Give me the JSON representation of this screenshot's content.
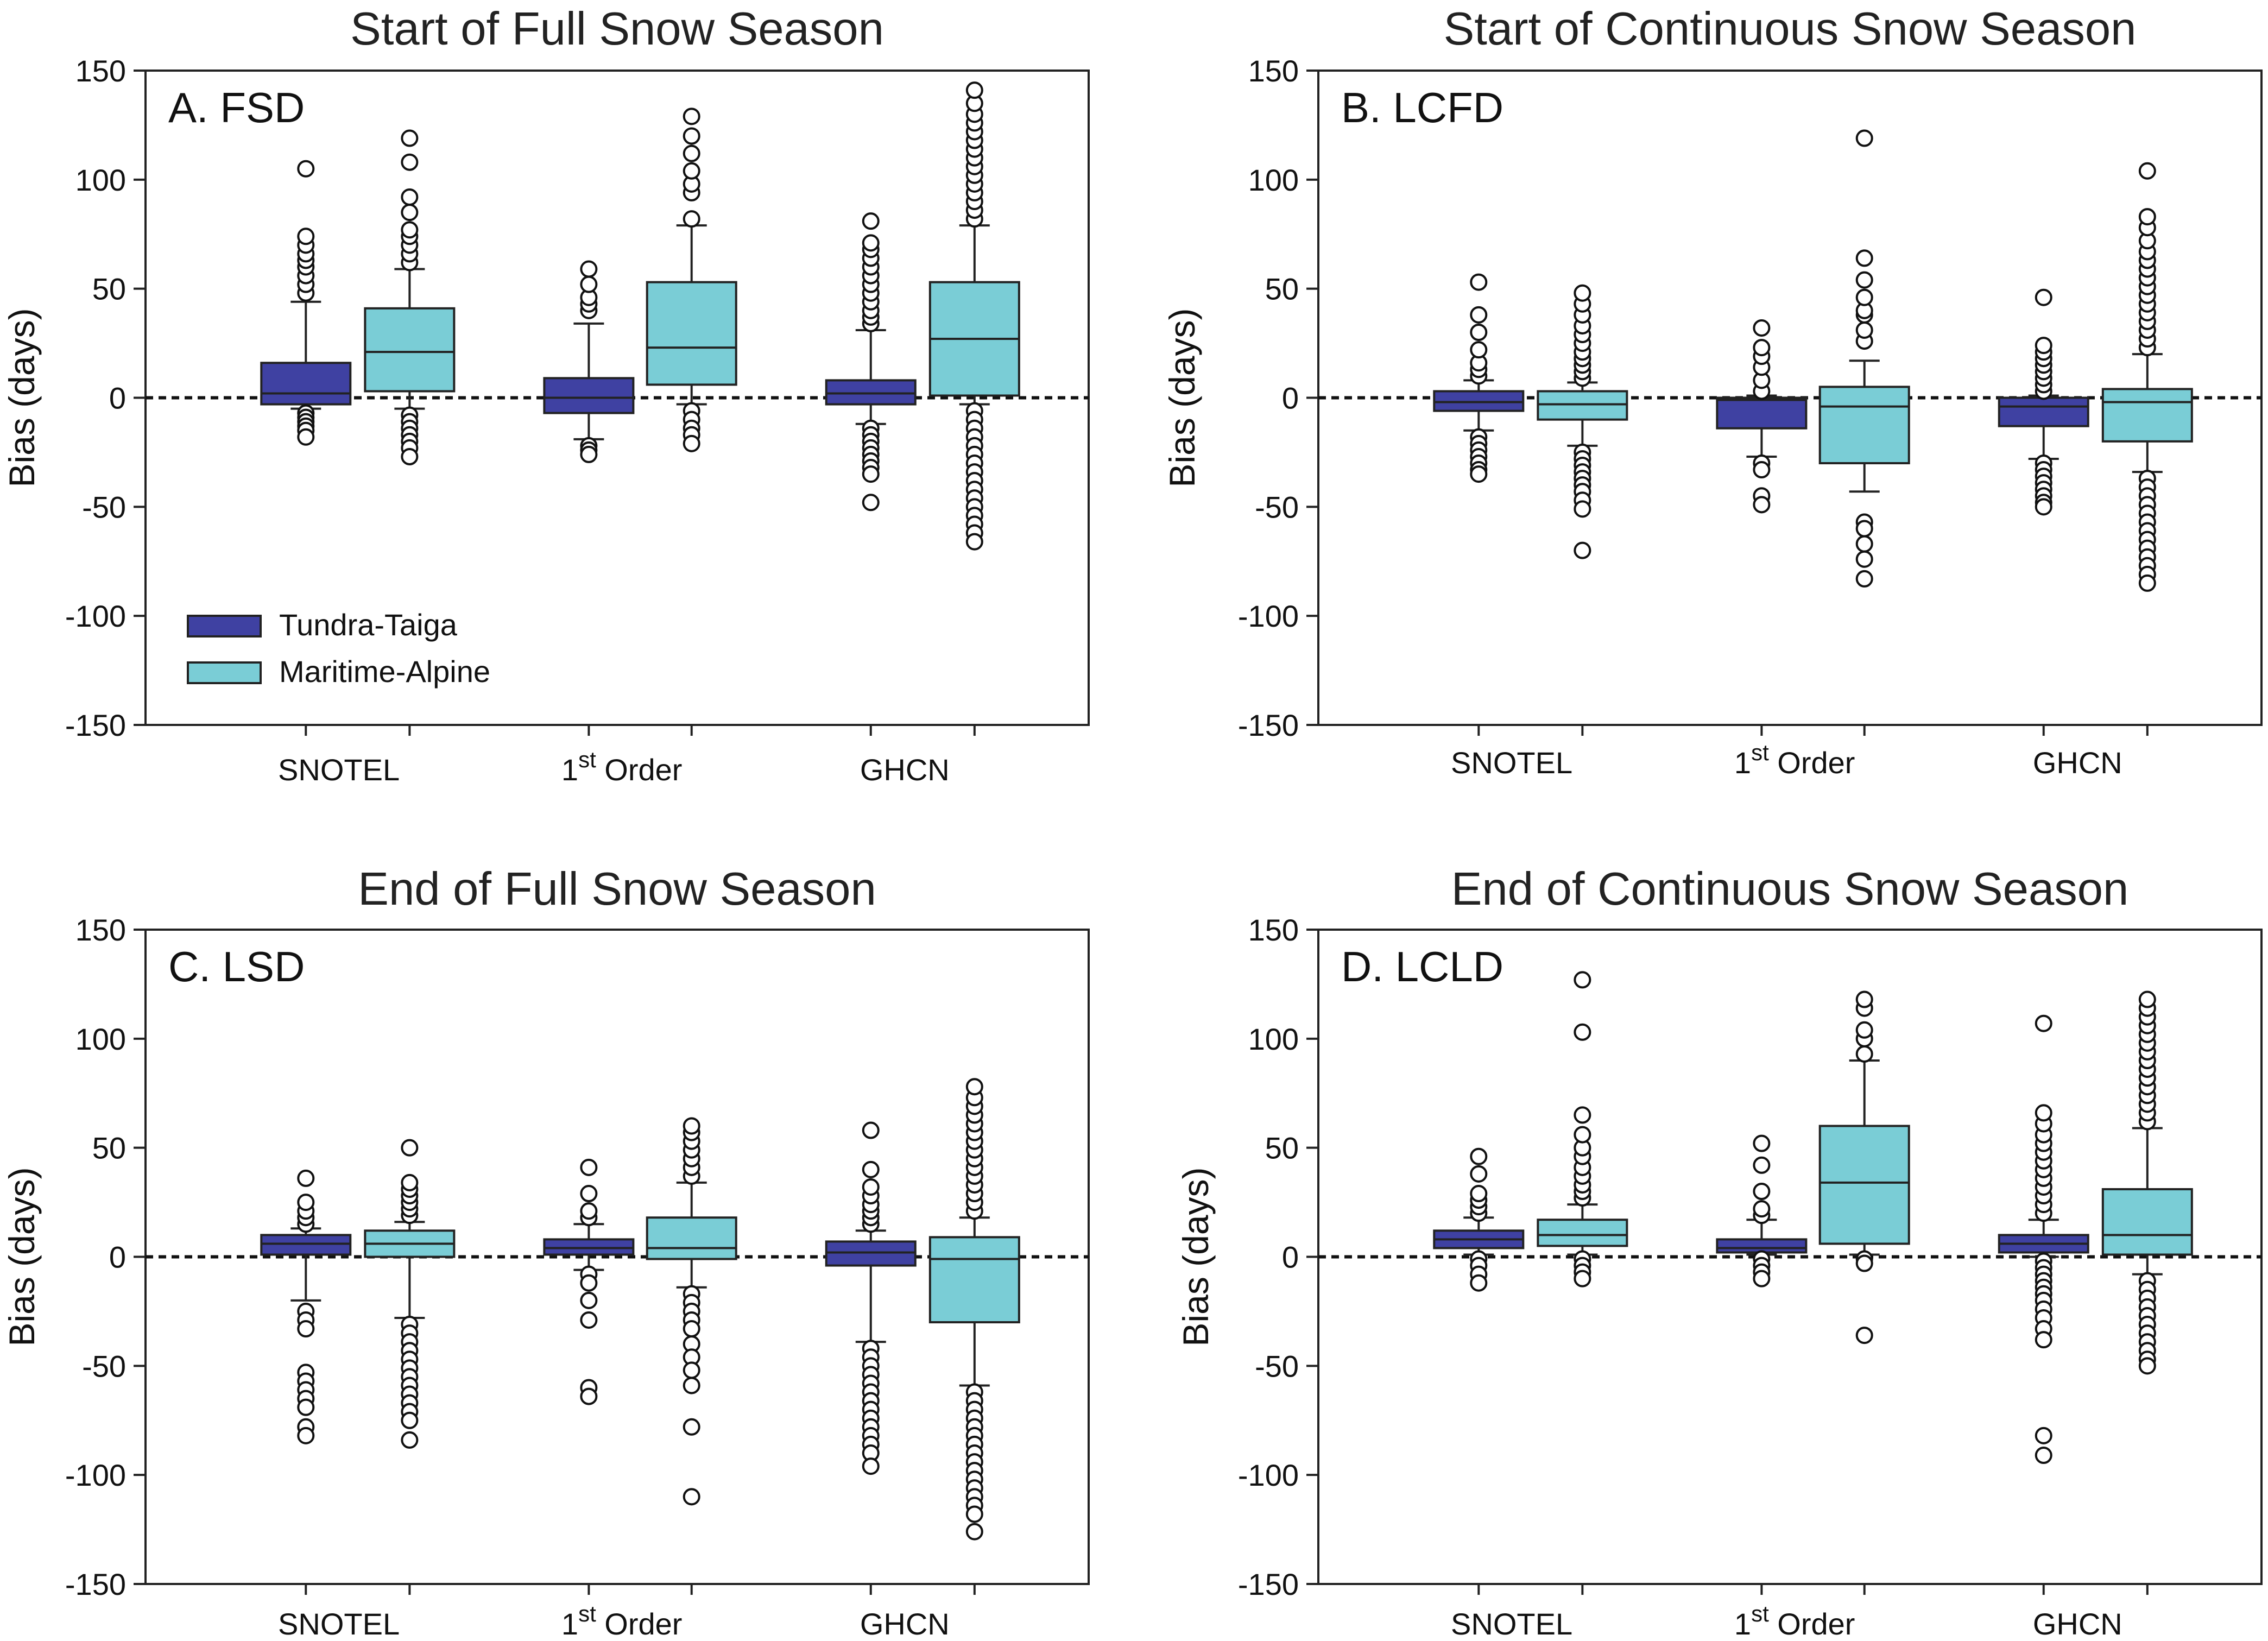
{
  "colors": {
    "tundra_taiga": "#3F41A2",
    "maritime_alpine": "#7ACDD6",
    "outline": "#222222"
  },
  "legend": {
    "tundra": "Tundra-Taiga",
    "maritime": "Maritime-Alpine"
  },
  "chart_data": [
    {
      "type": "box",
      "title": "Start of Full Snow Season",
      "panel_label": "A. FSD",
      "ylabel": "Bias (days)",
      "ylim": [
        -150,
        150
      ],
      "yticks": [
        150,
        100,
        50,
        0,
        -50,
        -100,
        -150
      ],
      "categories": [
        {
          "base": "SNOTEL",
          "sup": "",
          "rest": ""
        },
        {
          "base": "1",
          "sup": "st",
          "rest": " Order"
        },
        {
          "base": "GHCN",
          "sup": "",
          "rest": ""
        }
      ],
      "series": [
        {
          "name": "Tundra-Taiga",
          "boxes": [
            {
              "q1": -3,
              "median": 2,
              "q3": 16,
              "whisker_low": -5,
              "whisker_high": 44,
              "outliers_low": [
                -7,
                -9,
                -11,
                -13,
                -15,
                -18
              ],
              "outliers_high": [
                48,
                52,
                56,
                60,
                63,
                66,
                70,
                74,
                105
              ]
            },
            {
              "q1": -7,
              "median": 0,
              "q3": 9,
              "whisker_low": -19,
              "whisker_high": 34,
              "outliers_low": [
                -22,
                -24,
                -26
              ],
              "outliers_high": [
                40,
                43,
                46,
                52,
                59
              ]
            },
            {
              "q1": -3,
              "median": 2,
              "q3": 8,
              "whisker_low": -12,
              "whisker_high": 31,
              "outliers_low": [
                -14,
                -17,
                -20,
                -23,
                -26,
                -29,
                -32,
                -35,
                -48
              ],
              "outliers_high": [
                34,
                37,
                40,
                44,
                48,
                52,
                56,
                60,
                64,
                68,
                71,
                81
              ]
            }
          ]
        },
        {
          "name": "Maritime-Alpine",
          "boxes": [
            {
              "q1": 3,
              "median": 21,
              "q3": 41,
              "whisker_low": -5,
              "whisker_high": 59,
              "outliers_low": [
                -8,
                -11,
                -14,
                -17,
                -20,
                -23,
                -27
              ],
              "outliers_high": [
                62,
                66,
                70,
                74,
                77,
                85,
                92,
                108,
                119
              ]
            },
            {
              "q1": 6,
              "median": 23,
              "q3": 53,
              "whisker_low": -3,
              "whisker_high": 79,
              "outliers_low": [
                -6,
                -10,
                -14,
                -17,
                -21
              ],
              "outliers_high": [
                82,
                94,
                98,
                104,
                112,
                120,
                129
              ]
            },
            {
              "q1": 1,
              "median": 27,
              "q3": 53,
              "whisker_low": -3,
              "whisker_high": 79,
              "outliers_low": [
                -6,
                -10,
                -14,
                -18,
                -22,
                -26,
                -30,
                -34,
                -38,
                -42,
                -46,
                -50,
                -54,
                -58,
                -62,
                -66
              ],
              "outliers_high": [
                82,
                86,
                90,
                94,
                98,
                102,
                106,
                110,
                114,
                118,
                122,
                126,
                130,
                135,
                141
              ]
            }
          ]
        }
      ],
      "show_legend": true
    },
    {
      "type": "box",
      "title": "Start of Continuous Snow Season",
      "panel_label": "B. LCFD",
      "ylabel": "Bias (days)",
      "ylim": [
        -150,
        150
      ],
      "yticks": [
        150,
        100,
        50,
        0,
        -50,
        -100,
        -150
      ],
      "categories": [
        {
          "base": "SNOTEL",
          "sup": "",
          "rest": ""
        },
        {
          "base": "1",
          "sup": "st",
          "rest": " Order"
        },
        {
          "base": "GHCN",
          "sup": "",
          "rest": ""
        }
      ],
      "series": [
        {
          "name": "Tundra-Taiga",
          "boxes": [
            {
              "q1": -6,
              "median": -2,
              "q3": 3,
              "whisker_low": -15,
              "whisker_high": 8,
              "outliers_low": [
                -18,
                -21,
                -24,
                -27,
                -30,
                -33,
                -35
              ],
              "outliers_high": [
                10,
                13,
                16,
                22,
                30,
                38,
                53
              ]
            },
            {
              "q1": -14,
              "median": -1,
              "q3": 0,
              "whisker_low": -27,
              "whisker_high": 1,
              "outliers_low": [
                -30,
                -33,
                -45,
                -49
              ],
              "outliers_high": [
                3,
                8,
                14,
                19,
                23,
                32
              ]
            },
            {
              "q1": -13,
              "median": -4,
              "q3": 0,
              "whisker_low": -28,
              "whisker_high": 1,
              "outliers_low": [
                -30,
                -33,
                -36,
                -39,
                -42,
                -45,
                -48,
                -50
              ],
              "outliers_high": [
                3,
                6,
                9,
                12,
                15,
                18,
                21,
                24,
                46
              ]
            }
          ]
        },
        {
          "name": "Maritime-Alpine",
          "boxes": [
            {
              "q1": -10,
              "median": -3,
              "q3": 3,
              "whisker_low": -22,
              "whisker_high": 7,
              "outliers_low": [
                -25,
                -28,
                -31,
                -34,
                -37,
                -40,
                -43,
                -47,
                -51,
                -70
              ],
              "outliers_high": [
                9,
                12,
                15,
                18,
                21,
                25,
                29,
                33,
                38,
                43,
                48
              ]
            },
            {
              "q1": -30,
              "median": -4,
              "q3": 5,
              "whisker_low": -43,
              "whisker_high": 17,
              "outliers_low": [
                -57,
                -60,
                -67,
                -74,
                -83
              ],
              "outliers_high": [
                26,
                31,
                38,
                40,
                46,
                54,
                64,
                119
              ]
            },
            {
              "q1": -20,
              "median": -2,
              "q3": 4,
              "whisker_low": -34,
              "whisker_high": 20,
              "outliers_low": [
                -37,
                -41,
                -45,
                -49,
                -53,
                -57,
                -61,
                -65,
                -69,
                -73,
                -77,
                -81,
                -85
              ],
              "outliers_high": [
                23,
                27,
                31,
                35,
                39,
                43,
                47,
                51,
                55,
                59,
                63,
                67,
                72,
                78,
                83,
                104
              ]
            }
          ]
        }
      ],
      "show_legend": false
    },
    {
      "type": "box",
      "title": "End of Full Snow Season",
      "panel_label": "C. LSD",
      "ylabel": "Bias (days)",
      "ylim": [
        -150,
        150
      ],
      "yticks": [
        150,
        100,
        50,
        0,
        -50,
        -100,
        -150
      ],
      "categories": [
        {
          "base": "SNOTEL",
          "sup": "",
          "rest": ""
        },
        {
          "base": "1",
          "sup": "st",
          "rest": " Order"
        },
        {
          "base": "GHCN",
          "sup": "",
          "rest": ""
        }
      ],
      "series": [
        {
          "name": "Tundra-Taiga",
          "boxes": [
            {
              "q1": 1,
              "median": 6,
              "q3": 10,
              "whisker_low": -20,
              "whisker_high": 13,
              "outliers_low": [
                -25,
                -29,
                -33,
                -53,
                -57,
                -61,
                -65,
                -69,
                -78,
                -82
              ],
              "outliers_high": [
                15,
                18,
                21,
                25,
                36
              ]
            },
            {
              "q1": 1,
              "median": 4,
              "q3": 8,
              "whisker_low": -6,
              "whisker_high": 15,
              "outliers_low": [
                -8,
                -12,
                -20,
                -29,
                -60,
                -64
              ],
              "outliers_high": [
                18,
                21,
                29,
                41
              ]
            },
            {
              "q1": -4,
              "median": 2,
              "q3": 7,
              "whisker_low": -39,
              "whisker_high": 12,
              "outliers_low": [
                -42,
                -46,
                -50,
                -54,
                -58,
                -62,
                -66,
                -70,
                -74,
                -78,
                -82,
                -86,
                -90,
                -96
              ],
              "outliers_high": [
                15,
                18,
                21,
                24,
                28,
                32,
                40,
                58
              ]
            }
          ]
        },
        {
          "name": "Maritime-Alpine",
          "boxes": [
            {
              "q1": 0,
              "median": 6,
              "q3": 12,
              "whisker_low": -28,
              "whisker_high": 16,
              "outliers_low": [
                -31,
                -35,
                -39,
                -43,
                -47,
                -51,
                -55,
                -59,
                -63,
                -67,
                -71,
                -75,
                -84
              ],
              "outliers_high": [
                19,
                22,
                25,
                28,
                31,
                34,
                50
              ]
            },
            {
              "q1": -1,
              "median": 4,
              "q3": 18,
              "whisker_low": -14,
              "whisker_high": 34,
              "outliers_low": [
                -17,
                -21,
                -25,
                -29,
                -33,
                -40,
                -46,
                -52,
                -59,
                -78,
                -110
              ],
              "outliers_high": [
                37,
                41,
                45,
                49,
                53,
                57,
                60
              ]
            },
            {
              "q1": -30,
              "median": -1,
              "q3": 9,
              "whisker_low": -59,
              "whisker_high": 18,
              "outliers_low": [
                -62,
                -66,
                -70,
                -74,
                -78,
                -82,
                -86,
                -90,
                -94,
                -98,
                -102,
                -106,
                -110,
                -114,
                -118,
                -126
              ],
              "outliers_high": [
                21,
                25,
                29,
                33,
                37,
                41,
                45,
                49,
                53,
                57,
                61,
                65,
                69,
                73,
                78
              ]
            }
          ]
        }
      ],
      "show_legend": false
    },
    {
      "type": "box",
      "title": "End of Continuous Snow Season",
      "panel_label": "D. LCLD",
      "ylabel": "Bias (days)",
      "ylim": [
        -150,
        150
      ],
      "yticks": [
        150,
        100,
        50,
        0,
        -50,
        -100,
        -150
      ],
      "categories": [
        {
          "base": "SNOTEL",
          "sup": "",
          "rest": ""
        },
        {
          "base": "1",
          "sup": "st",
          "rest": " Order"
        },
        {
          "base": "GHCN",
          "sup": "",
          "rest": ""
        }
      ],
      "series": [
        {
          "name": "Tundra-Taiga",
          "boxes": [
            {
              "q1": 4,
              "median": 8,
              "q3": 12,
              "whisker_low": 1,
              "whisker_high": 18,
              "outliers_low": [
                -1,
                -4,
                -8,
                -12
              ],
              "outliers_high": [
                20,
                23,
                26,
                29,
                38,
                46
              ]
            },
            {
              "q1": 2,
              "median": 4,
              "q3": 8,
              "whisker_low": 1,
              "whisker_high": 17,
              "outliers_low": [
                -1,
                -4,
                -7,
                -10
              ],
              "outliers_high": [
                19,
                22,
                30,
                42,
                52
              ]
            },
            {
              "q1": 2,
              "median": 6,
              "q3": 10,
              "whisker_low": 0,
              "whisker_high": 17,
              "outliers_low": [
                -2,
                -5,
                -8,
                -11,
                -14,
                -17,
                -20,
                -24,
                -28,
                -33,
                -38,
                -82,
                -91
              ],
              "outliers_high": [
                20,
                24,
                28,
                32,
                36,
                40,
                44,
                48,
                52,
                56,
                61,
                66,
                107
              ]
            }
          ]
        },
        {
          "name": "Maritime-Alpine",
          "boxes": [
            {
              "q1": 5,
              "median": 10,
              "q3": 17,
              "whisker_low": 1,
              "whisker_high": 24,
              "outliers_low": [
                -1,
                -4,
                -7,
                -10
              ],
              "outliers_high": [
                27,
                30,
                33,
                37,
                41,
                46,
                50,
                56,
                65,
                103,
                127
              ]
            },
            {
              "q1": 6,
              "median": 34,
              "q3": 60,
              "whisker_low": 1,
              "whisker_high": 90,
              "outliers_low": [
                -1,
                -3,
                -36
              ],
              "outliers_high": [
                93,
                100,
                104,
                114,
                118
              ]
            },
            {
              "q1": 1,
              "median": 10,
              "q3": 31,
              "whisker_low": -8,
              "whisker_high": 59,
              "outliers_low": [
                -11,
                -15,
                -19,
                -23,
                -27,
                -31,
                -35,
                -39,
                -43,
                -47,
                -50
              ],
              "outliers_high": [
                62,
                66,
                70,
                74,
                78,
                82,
                86,
                90,
                94,
                98,
                102,
                106,
                110,
                114,
                118
              ]
            }
          ]
        }
      ],
      "show_legend": false
    }
  ]
}
